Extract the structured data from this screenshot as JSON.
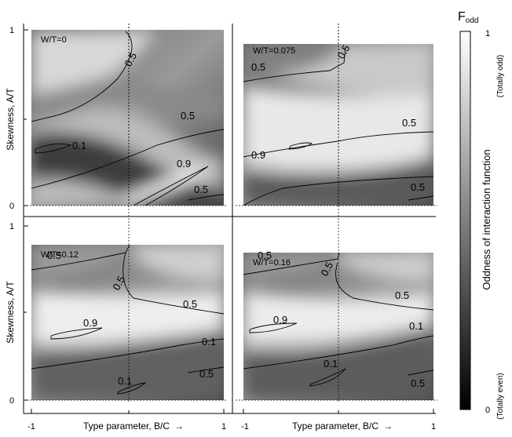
{
  "chart_data": {
    "type": "heatmap",
    "y_axis_label": "Skewness, A/T",
    "x_axis_label": "Type parameter, B/C",
    "x_arrow": "→",
    "x_ticks": [
      "-1",
      "1"
    ],
    "y_ticks": [
      "0",
      "1"
    ],
    "colorbar": {
      "title": "F",
      "title_sub": "odd",
      "label": "Oddness of interaction function",
      "tick_max": "1",
      "tick_min": "0",
      "top_note": "(Totally odd)",
      "bottom_note": "(Totally even)"
    },
    "panels": [
      {
        "label": "W/T=0",
        "contour_labels": [
          "0.5",
          "0.5",
          "0.1",
          "0.9",
          "0.5"
        ]
      },
      {
        "label": "W/T=0.075",
        "contour_labels": [
          "0.5",
          "0.5",
          "0.5",
          "0.9",
          "0.5"
        ]
      },
      {
        "label": "W/T=0.12",
        "contour_labels": [
          "0.5",
          "0.5",
          "0.5",
          "0.9",
          "0.1",
          "0.1",
          "0.5"
        ]
      },
      {
        "label": "W/T=0.16",
        "contour_labels": [
          "0.5",
          "0.5",
          "0.5",
          "0.9",
          "0.1",
          "0.1",
          "0.5"
        ]
      }
    ]
  }
}
